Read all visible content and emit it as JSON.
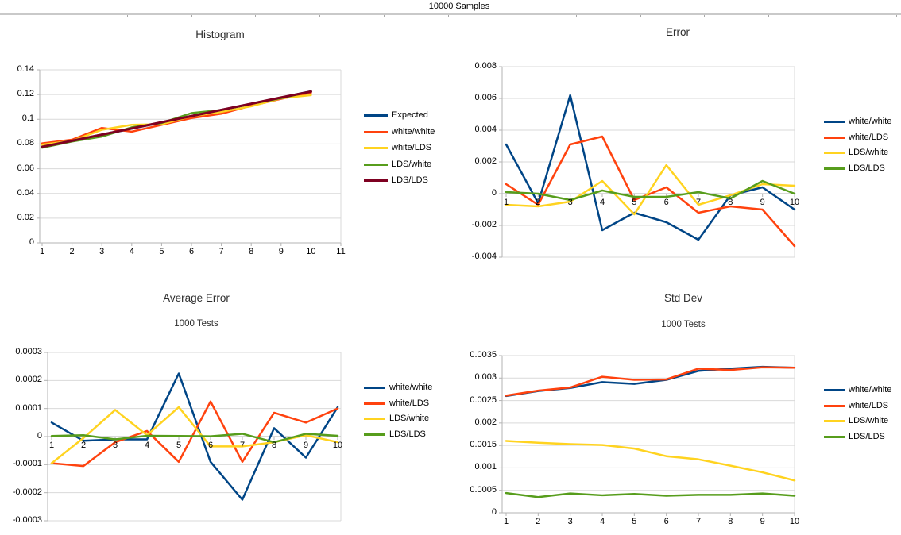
{
  "page": {
    "title": "10000 Samples",
    "background": "#FFFFFF"
  },
  "palette": {
    "blue": "#004586",
    "red": "#FF420E",
    "yellow": "#FFD320",
    "green": "#579D1C",
    "dark_red": "#7E0021",
    "gridline": "#D9D9D9",
    "axis": "#B3B3B3",
    "ruler": "#C9C9C9"
  },
  "chart_data": [
    {
      "type": "line",
      "title": "Histogram",
      "subtitle": "",
      "x": [
        1,
        2,
        3,
        4,
        5,
        6,
        7,
        8,
        9,
        10
      ],
      "xtick_labels": [
        "1",
        "2",
        "3",
        "4",
        "5",
        "6",
        "7",
        "8",
        "9",
        "10",
        "11"
      ],
      "xlim": [
        1,
        11
      ],
      "ylim": [
        0,
        0.14
      ],
      "ytick_labels": [
        "0.14",
        "0.12",
        "0.1",
        "0.08",
        "0.06",
        "0.04",
        "0.02",
        "0"
      ],
      "grid": "horizontal",
      "legend_position": "right",
      "series": [
        {
          "name": "Expected",
          "color": "#004586",
          "values": [
            0.0775,
            0.0825,
            0.0875,
            0.0925,
            0.0975,
            0.1025,
            0.1075,
            0.1125,
            0.1175,
            0.1225
          ]
        },
        {
          "name": "white/white",
          "color": "#FF420E",
          "values": [
            0.0805,
            0.0835,
            0.093,
            0.09,
            0.0955,
            0.101,
            0.1045,
            0.111,
            0.1165,
            0.1215
          ]
        },
        {
          "name": "white/LDS",
          "color": "#FFD320",
          "values": [
            0.0795,
            0.0825,
            0.0915,
            0.0955,
            0.096,
            0.1025,
            0.106,
            0.1105,
            0.117,
            0.1195
          ]
        },
        {
          "name": "LDS/white",
          "color": "#579D1C",
          "values": [
            0.077,
            0.082,
            0.086,
            0.0935,
            0.097,
            0.105,
            0.1075,
            0.1125,
            0.117,
            0.1225
          ]
        },
        {
          "name": "LDS/LDS",
          "color": "#7E0021",
          "values": [
            0.0777,
            0.0826,
            0.0876,
            0.0926,
            0.0976,
            0.1026,
            0.1076,
            0.1126,
            0.1176,
            0.1224
          ]
        }
      ]
    },
    {
      "type": "line",
      "title": "Error",
      "subtitle": "",
      "x": [
        1,
        2,
        3,
        4,
        5,
        6,
        7,
        8,
        9,
        10
      ],
      "xtick_labels": [
        "1",
        "2",
        "3",
        "4",
        "5",
        "6",
        "7",
        "8",
        "9",
        "10"
      ],
      "xlim": [
        1,
        10
      ],
      "ylim": [
        -0.004,
        0.008
      ],
      "ytick_labels": [
        "0.008",
        "0.006",
        "0.004",
        "0.002",
        "0",
        "-0.002",
        "-0.004"
      ],
      "grid": "horizontal",
      "legend_position": "right",
      "series": [
        {
          "name": "white/white",
          "color": "#004586",
          "values": [
            0.0031,
            -0.0006,
            0.0062,
            -0.0023,
            -0.0012,
            -0.0018,
            -0.0029,
            -0.0001,
            0.0004,
            -0.001
          ]
        },
        {
          "name": "white/LDS",
          "color": "#FF420E",
          "values": [
            0.0006,
            -0.0007,
            0.0031,
            0.0036,
            -0.0004,
            0.0004,
            -0.0012,
            -0.0008,
            -0.001,
            -0.0033
          ]
        },
        {
          "name": "LDS/white",
          "color": "#FFD320",
          "values": [
            -0.0007,
            -0.0008,
            -0.0005,
            0.0008,
            -0.0013,
            0.0018,
            -0.0007,
            -0.0001,
            0.0006,
            0.0005
          ]
        },
        {
          "name": "LDS/LDS",
          "color": "#579D1C",
          "values": [
            0.0001,
            0.0,
            -0.0004,
            0.0002,
            -0.0002,
            -0.0002,
            0.0001,
            -0.0003,
            0.0008,
            0.0
          ]
        }
      ]
    },
    {
      "type": "line",
      "title": "Average Error",
      "subtitle": "1000 Tests",
      "x": [
        1,
        2,
        3,
        4,
        5,
        6,
        7,
        8,
        9,
        10
      ],
      "xtick_labels": [
        "1",
        "2",
        "3",
        "4",
        "5",
        "6",
        "7",
        "8",
        "9",
        "10"
      ],
      "xlim": [
        1,
        10
      ],
      "ylim": [
        -0.0003,
        0.0003
      ],
      "ytick_labels": [
        "0.0003",
        "0.0002",
        "0.0001",
        "0",
        "-0.0001",
        "-0.0002",
        "-0.0003"
      ],
      "grid": "horizontal",
      "legend_position": "right",
      "series": [
        {
          "name": "white/white",
          "color": "#004586",
          "values": [
            5e-05,
            -1.5e-05,
            -1e-05,
            -1e-05,
            0.000225,
            -9e-05,
            -0.000225,
            3e-05,
            -7.5e-05,
            0.000105
          ]
        },
        {
          "name": "white/LDS",
          "color": "#FF420E",
          "values": [
            -9.5e-05,
            -0.000105,
            -2e-05,
            2e-05,
            -9e-05,
            0.000125,
            -9e-05,
            8.5e-05,
            5e-05,
            0.0001
          ]
        },
        {
          "name": "LDS/white",
          "color": "#FFD320",
          "values": [
            -9.5e-05,
            -5e-06,
            9.5e-05,
            5e-06,
            0.000105,
            -3.5e-05,
            -3.5e-05,
            -2e-05,
            5e-06,
            -2e-05
          ]
        },
        {
          "name": "LDS/LDS",
          "color": "#579D1C",
          "values": [
            2e-06,
            5e-06,
            -1e-05,
            3e-06,
            2e-06,
            1e-06,
            1e-05,
            -2e-05,
            1e-05,
            3e-06
          ]
        }
      ]
    },
    {
      "type": "line",
      "title": "Std Dev",
      "subtitle": "1000 Tests",
      "x": [
        1,
        2,
        3,
        4,
        5,
        6,
        7,
        8,
        9,
        10
      ],
      "xtick_labels": [
        "1",
        "2",
        "3",
        "4",
        "5",
        "6",
        "7",
        "8",
        "9",
        "10"
      ],
      "xlim": [
        1,
        10
      ],
      "ylim": [
        0,
        0.0035
      ],
      "ytick_labels": [
        "0.0035",
        "0.003",
        "0.0025",
        "0.002",
        "0.0015",
        "0.001",
        "0.0005",
        "0"
      ],
      "grid": "horizontal",
      "legend_position": "right",
      "series": [
        {
          "name": "white/white",
          "color": "#004586",
          "values": [
            0.0026,
            0.00271,
            0.00278,
            0.00291,
            0.00287,
            0.00296,
            0.00316,
            0.00321,
            0.00325,
            0.00323
          ]
        },
        {
          "name": "white/LDS",
          "color": "#FF420E",
          "values": [
            0.00261,
            0.00272,
            0.00279,
            0.00303,
            0.00296,
            0.00297,
            0.00321,
            0.00318,
            0.00324,
            0.00323
          ]
        },
        {
          "name": "LDS/white",
          "color": "#FFD320",
          "values": [
            0.0016,
            0.00156,
            0.00153,
            0.00151,
            0.00143,
            0.00126,
            0.00119,
            0.00105,
            0.0009,
            0.00072
          ]
        },
        {
          "name": "LDS/LDS",
          "color": "#579D1C",
          "values": [
            0.00044,
            0.00035,
            0.00043,
            0.00039,
            0.00042,
            0.00038,
            0.0004,
            0.0004,
            0.00043,
            0.00038
          ]
        }
      ]
    }
  ]
}
